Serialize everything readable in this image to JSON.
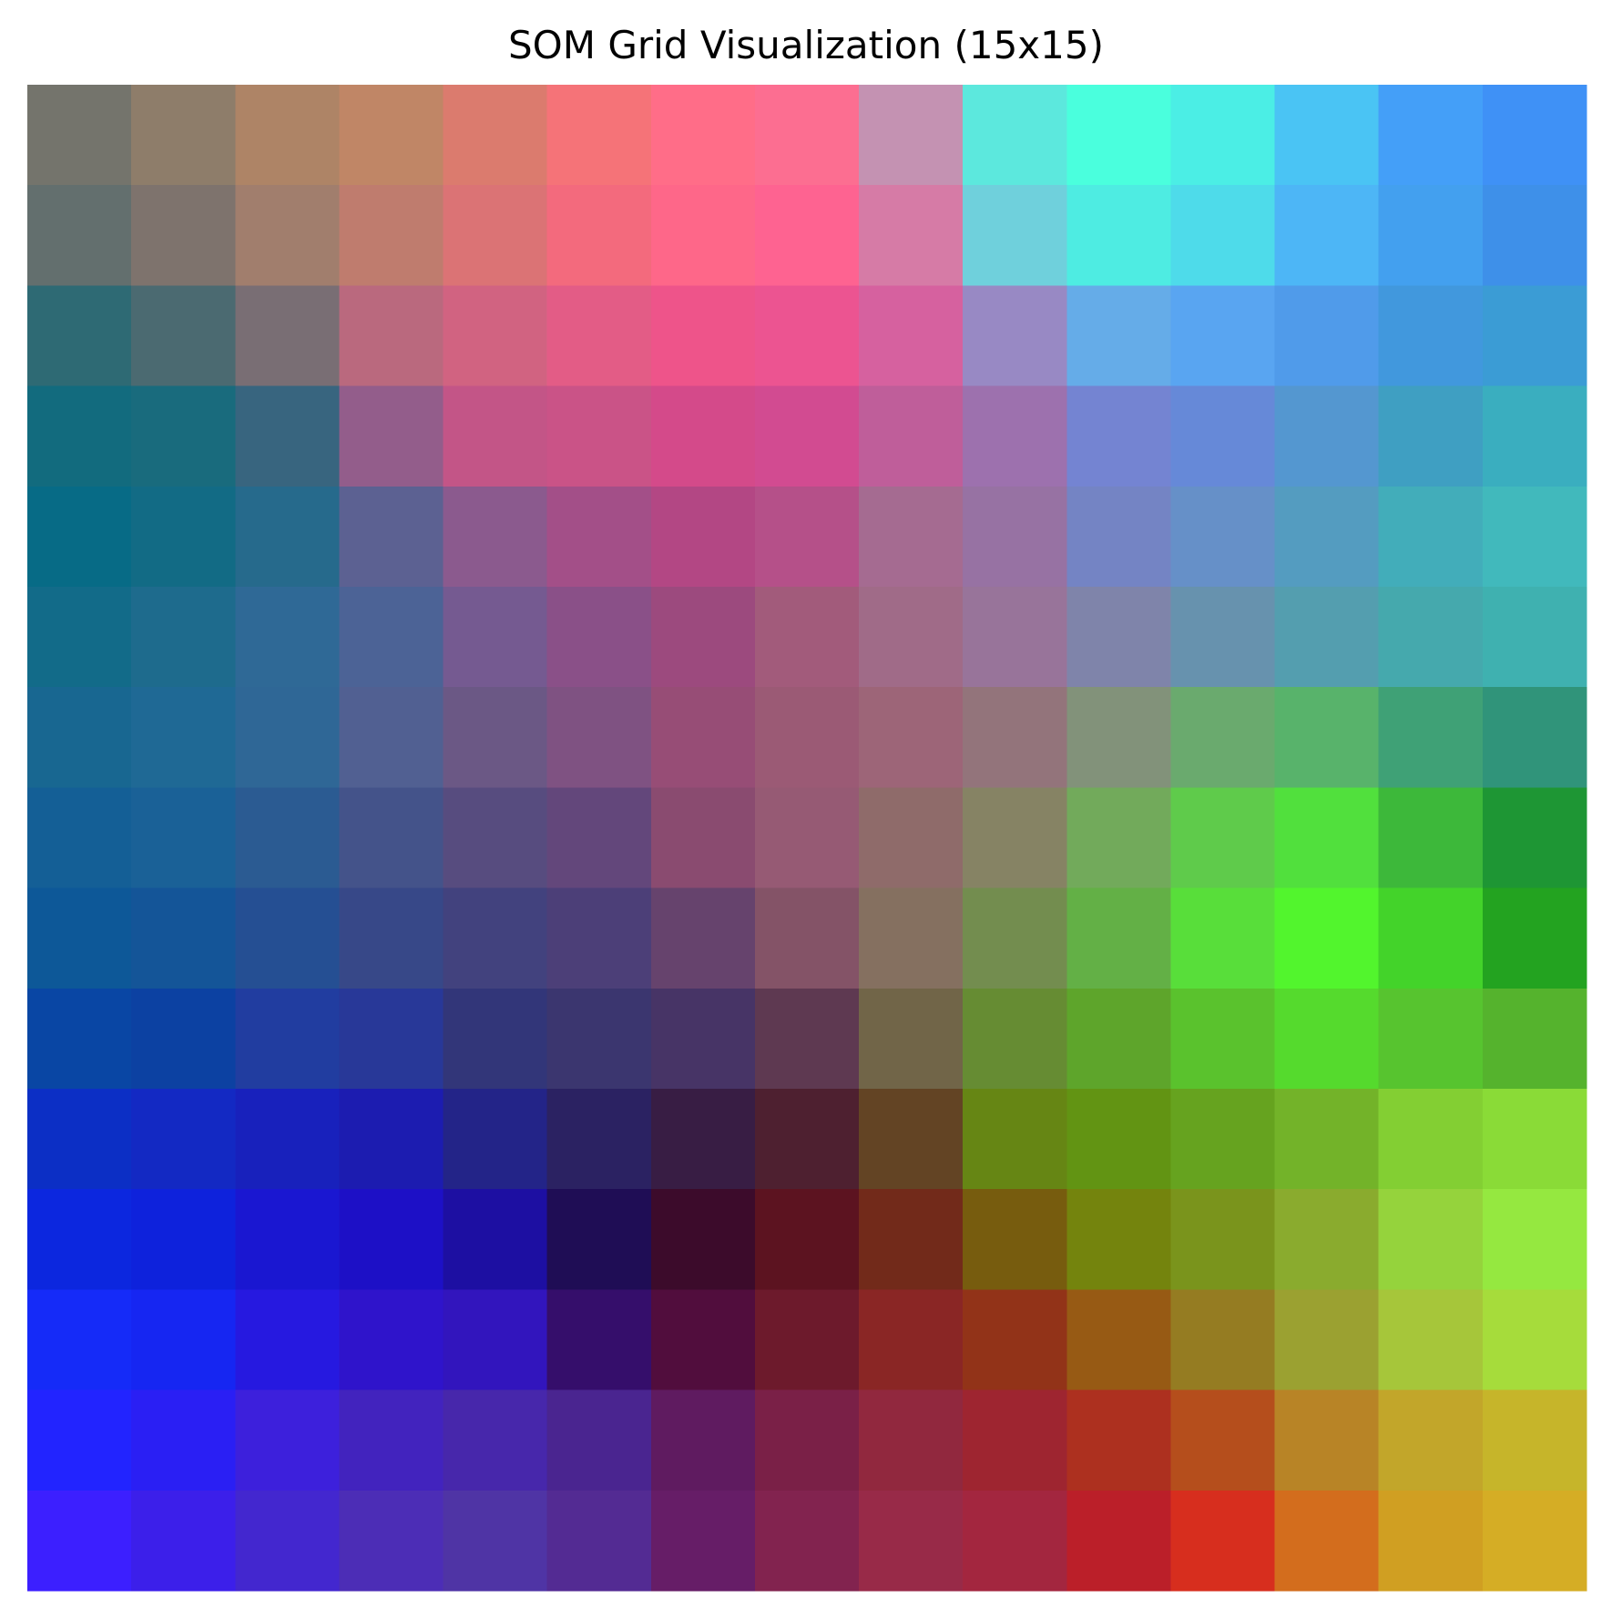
{
  "chart_data": {
    "type": "heatmap",
    "title": "SOM Grid Visualization (15x15)",
    "rows": 15,
    "cols": 15,
    "cells": [
      [
        "#74746c",
        "#8e7d6a",
        "#ae8466",
        "#c08666",
        "#db7b6e",
        "#f57378",
        "#ff6d88",
        "#fc6e91",
        "#c492b2",
        "#5ce8dd",
        "#4affdd",
        "#4beee5",
        "#4ac4f4",
        "#449ff8",
        "#3f91f6"
      ],
      [
        "#636f6e",
        "#7e736d",
        "#a17e6d",
        "#bf7c6e",
        "#db7375",
        "#f36a7d",
        "#fe6789",
        "#fe6391",
        "#d67ba6",
        "#6fd0dc",
        "#4eece2",
        "#4edbea",
        "#4db6f6",
        "#43a0ef",
        "#3e90e9"
      ],
      [
        "#2e6a74",
        "#4b6a71",
        "#796e74",
        "#ba697e",
        "#d16381",
        "#e35c86",
        "#ee548a",
        "#ec5491",
        "#d6619f",
        "#9889c4",
        "#65ace8",
        "#59a5f1",
        "#509bea",
        "#4198dd",
        "#3b9cd5"
      ],
      [
        "#126b7e",
        "#196b7d",
        "#38657f",
        "#935d8b",
        "#c35587",
        "#ca5387",
        "#d44a8a",
        "#d24b91",
        "#bf5e9a",
        "#9d71ae",
        "#7484d2",
        "#6689d8",
        "#5497d0",
        "#3f9fc2",
        "#3aaebf"
      ],
      [
        "#076b86",
        "#126b85",
        "#266a8c",
        "#5c6192",
        "#8b5a8e",
        "#a34f88",
        "#b34784",
        "#b55089",
        "#a56b91",
        "#9772a3",
        "#7484c4",
        "#6690c8",
        "#549cc0",
        "#42adba",
        "#41b9bc"
      ],
      [
        "#126b89",
        "#1e6b8d",
        "#2f6996",
        "#4c6396",
        "#755a91",
        "#8a5088",
        "#9c4a7e",
        "#a25b7b",
        "#a06b88",
        "#98749a",
        "#7f84aa",
        "#6792ae",
        "#549eaf",
        "#45a9ad",
        "#3fb1b0"
      ],
      [
        "#186791",
        "#1f6995",
        "#2f6796",
        "#516092",
        "#6b5885",
        "#7f5282",
        "#974d76",
        "#9b5a75",
        "#9d6578",
        "#93747b",
        "#82927a",
        "#6aaa6e",
        "#58b36b",
        "#3fa176",
        "#30947a"
      ],
      [
        "#145f96",
        "#1a6197",
        "#2b5b92",
        "#44538a",
        "#574c7f",
        "#63477b",
        "#8a4b70",
        "#965a74",
        "#8f6b6a",
        "#868364",
        "#72aa5b",
        "#5fcb4b",
        "#51e03d",
        "#3db83a",
        "#1e9634"
      ],
      [
        "#0d5898",
        "#145598",
        "#254f93",
        "#374888",
        "#42427e",
        "#4c3f78",
        "#66436d",
        "#845367",
        "#857060",
        "#738d4f",
        "#63b046",
        "#58de3a",
        "#52f52d",
        "#43d32a",
        "#23a320"
      ],
      [
        "#0946a4",
        "#0c41a2",
        "#213da0",
        "#283898",
        "#323679",
        "#3b366f",
        "#473466",
        "#5e3951",
        "#716548",
        "#668c33",
        "#5ea52b",
        "#5ac22d",
        "#55da2d",
        "#57c42f",
        "#55b32d"
      ],
      [
        "#0c2fc5",
        "#1329c3",
        "#1821bc",
        "#1c1cb0",
        "#232488",
        "#2b2262",
        "#381d44",
        "#4e2030",
        "#634424",
        "#668614",
        "#629413",
        "#66a31f",
        "#73b329",
        "#83cf33",
        "#8adb37"
      ],
      [
        "#0c27df",
        "#0e22dc",
        "#1a17d1",
        "#1d10c6",
        "#1d0fa2",
        "#1f0d55",
        "#3c0b2b",
        "#5c1320",
        "#722a1a",
        "#775c0e",
        "#74840d",
        "#7a941c",
        "#8aab2e",
        "#95d33c",
        "#95e840"
      ],
      [
        "#152bf8",
        "#1626f2",
        "#2619e0",
        "#2f14cb",
        "#3215bd",
        "#350e6b",
        "#510d3d",
        "#6d1a2c",
        "#8a2625",
        "#923318",
        "#975a14",
        "#957c22",
        "#9ba131",
        "#a6c63a",
        "#a6dc3b"
      ],
      [
        "#2224ff",
        "#2a1ff4",
        "#3d20dc",
        "#4223be",
        "#4727ab",
        "#4a2590",
        "#5f1b60",
        "#7a2047",
        "#91283e",
        "#9e2530",
        "#ad301f",
        "#b54e1c",
        "#b88426",
        "#c2a62a",
        "#c6b52a"
      ],
      [
        "#3c1fff",
        "#3c1fea",
        "#4327cf",
        "#4c2db6",
        "#4f34a5",
        "#532b93",
        "#661d67",
        "#82234f",
        "#982a48",
        "#a3263f",
        "#bb1f29",
        "#d72e1e",
        "#d36d1d",
        "#d09f22",
        "#d5ad25"
      ]
    ]
  }
}
